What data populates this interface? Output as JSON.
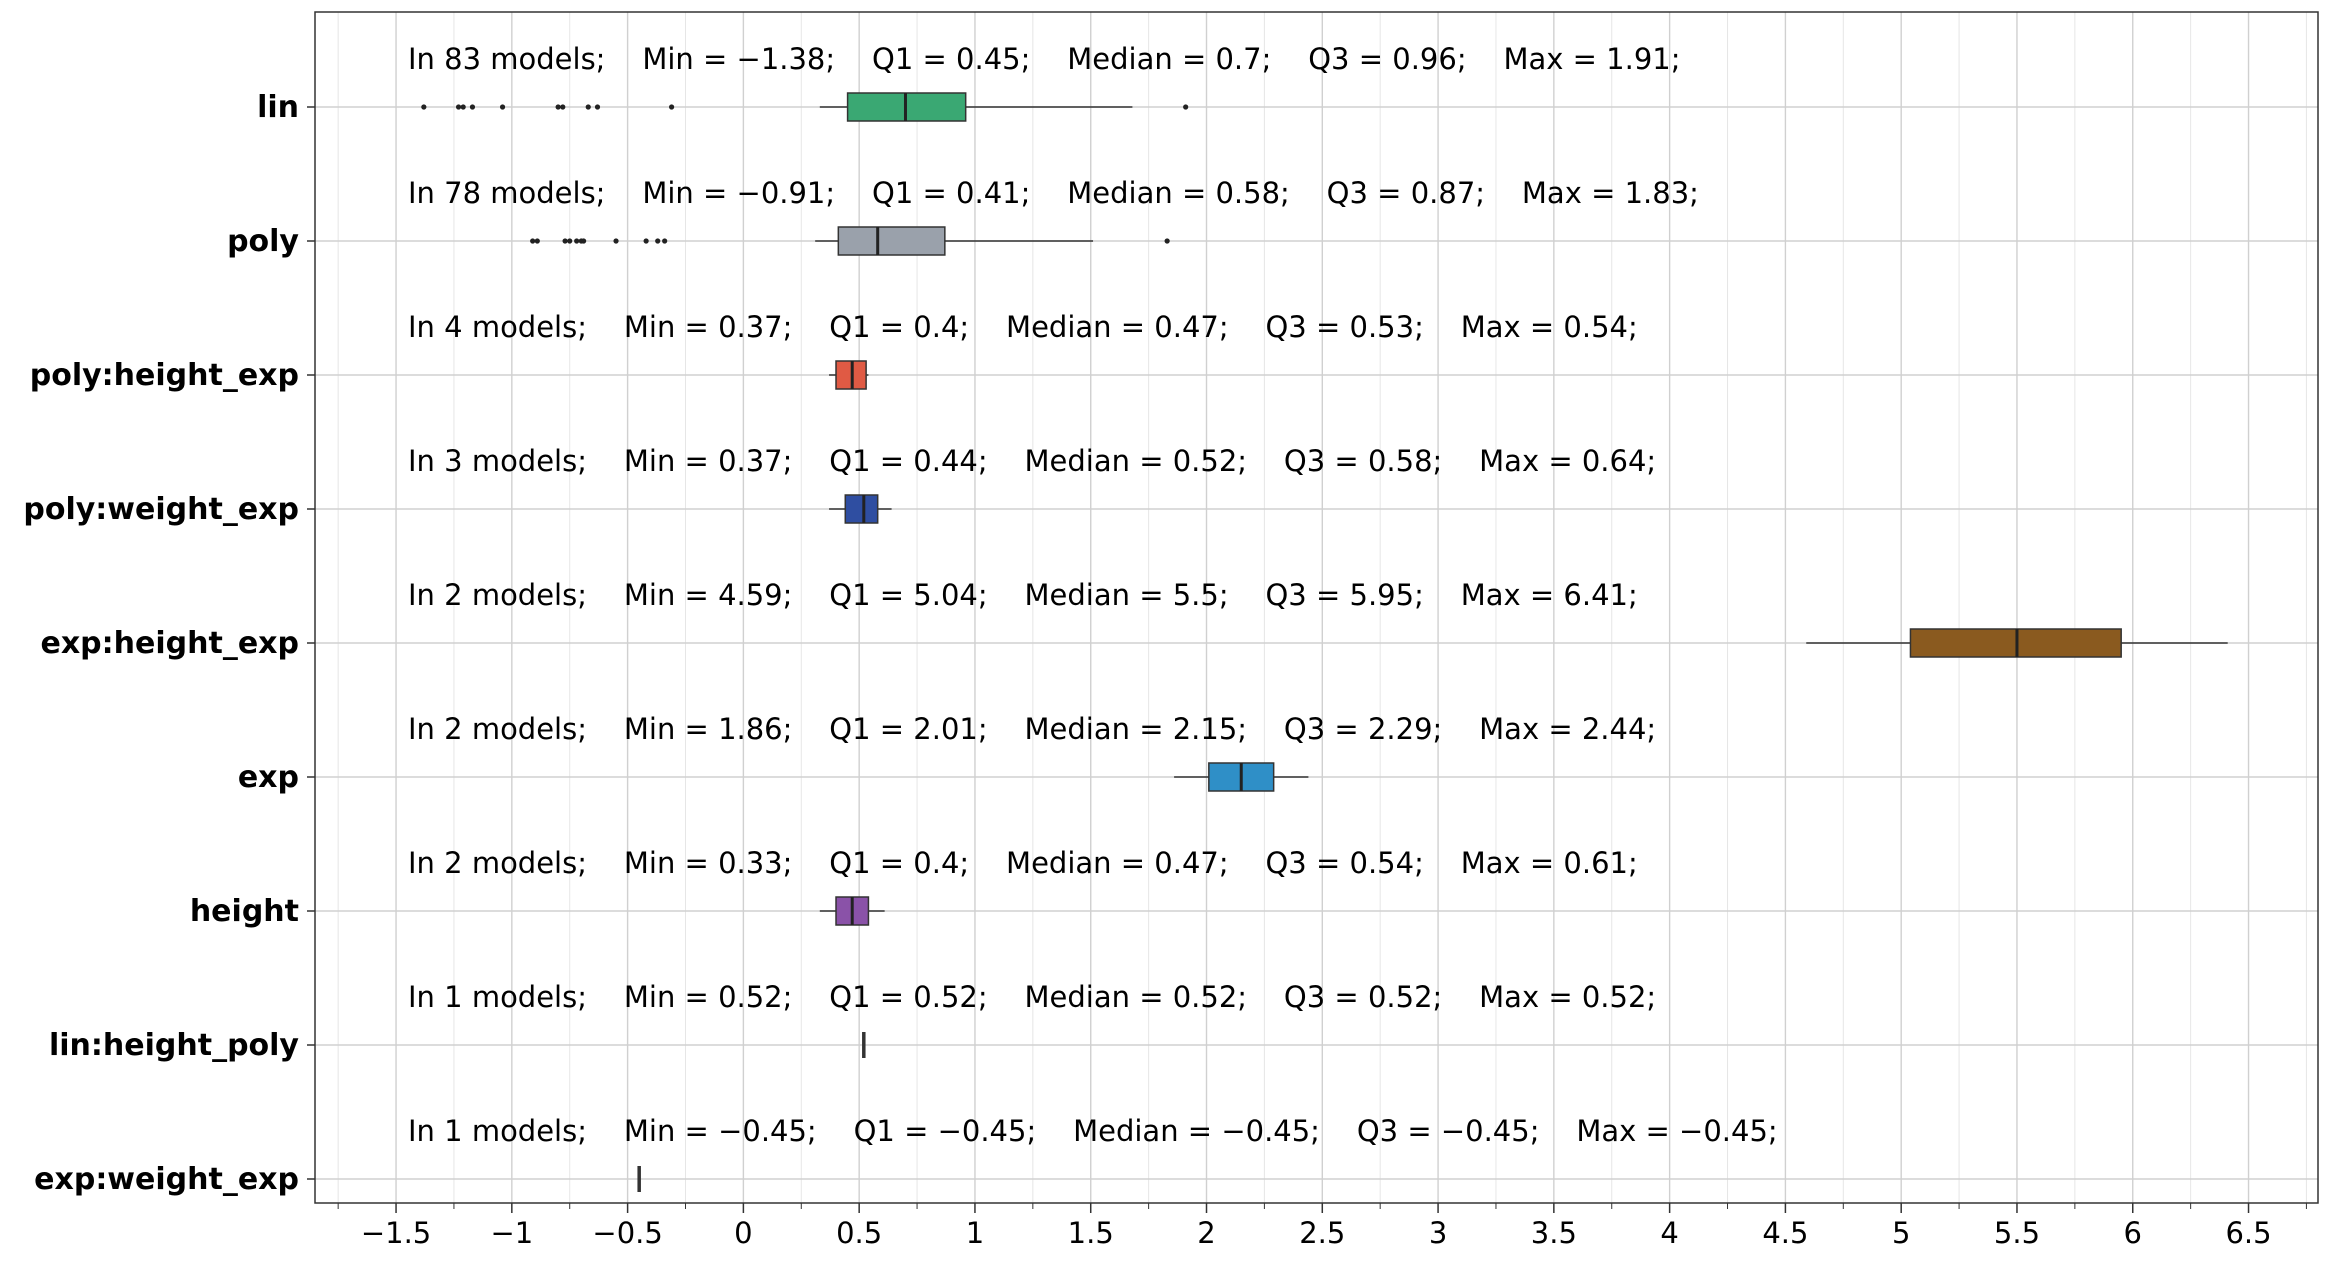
{
  "chart_data": {
    "type": "box",
    "orientation": "horizontal",
    "xlim": [
      -1.85,
      6.8
    ],
    "x_ticks": [
      "−1.5",
      "−1",
      "−0.5",
      "0",
      "0.5",
      "1",
      "1.5",
      "2",
      "2.5",
      "3",
      "3.5",
      "4",
      "4.5",
      "5",
      "5.5",
      "6",
      "6.5"
    ],
    "grid": true,
    "categories": [
      {
        "label": "lin",
        "annotation": "In 83 models;    Min = −1.38;    Q1 = 0.45;    Median = 0.7;    Q3 = 0.96;    Max = 1.91;",
        "color": "#3aa873",
        "min": -1.38,
        "whisker_low": 0.33,
        "q1": 0.45,
        "median": 0.7,
        "q3": 0.96,
        "whisker_high": 1.68,
        "max": 1.91,
        "outliers": [
          -1.38,
          -1.23,
          -1.21,
          -1.17,
          -1.04,
          -0.8,
          -0.78,
          -0.67,
          -0.63,
          -0.31,
          1.91
        ]
      },
      {
        "label": "poly",
        "annotation": "In 78 models;    Min = −0.91;    Q1 = 0.41;    Median = 0.58;    Q3 = 0.87;    Max = 1.83;",
        "color": "#9aa1ab",
        "min": -0.91,
        "whisker_low": 0.31,
        "q1": 0.41,
        "median": 0.58,
        "q3": 0.87,
        "whisker_high": 1.51,
        "max": 1.83,
        "outliers": [
          -0.91,
          -0.89,
          -0.77,
          -0.75,
          -0.72,
          -0.7,
          -0.69,
          -0.55,
          -0.42,
          -0.37,
          -0.34,
          1.83
        ]
      },
      {
        "label": "poly:height_exp",
        "annotation": "In 4 models;    Min = 0.37;    Q1 = 0.4;    Median = 0.47;    Q3 = 0.53;    Max = 0.54;",
        "color": "#e05a44",
        "min": 0.37,
        "whisker_low": 0.37,
        "q1": 0.4,
        "median": 0.47,
        "q3": 0.53,
        "whisker_high": 0.54,
        "max": 0.54,
        "outliers": []
      },
      {
        "label": "poly:weight_exp",
        "annotation": "In 3 models;    Min = 0.37;    Q1 = 0.44;    Median = 0.52;    Q3 = 0.58;    Max = 0.64;",
        "color": "#2f4ea1",
        "min": 0.37,
        "whisker_low": 0.37,
        "q1": 0.44,
        "median": 0.52,
        "q3": 0.58,
        "whisker_high": 0.64,
        "max": 0.64,
        "outliers": []
      },
      {
        "label": "exp:height_exp",
        "annotation": "In 2 models;    Min = 4.59;    Q1 = 5.04;    Median = 5.5;    Q3 = 5.95;    Max = 6.41;",
        "color": "#8a5a1f",
        "min": 4.59,
        "whisker_low": 4.59,
        "q1": 5.04,
        "median": 5.5,
        "q3": 5.95,
        "whisker_high": 6.41,
        "max": 6.41,
        "outliers": []
      },
      {
        "label": "exp",
        "annotation": "In 2 models;    Min = 1.86;    Q1 = 2.01;    Median = 2.15;    Q3 = 2.29;    Max = 2.44;",
        "color": "#2f8fc7",
        "min": 1.86,
        "whisker_low": 1.86,
        "q1": 2.01,
        "median": 2.15,
        "q3": 2.29,
        "whisker_high": 2.44,
        "max": 2.44,
        "outliers": []
      },
      {
        "label": "height",
        "annotation": "In 2 models;    Min = 0.33;    Q1 = 0.4;    Median = 0.47;    Q3 = 0.54;    Max = 0.61;",
        "color": "#8a52a8",
        "min": 0.33,
        "whisker_low": 0.33,
        "q1": 0.4,
        "median": 0.47,
        "q3": 0.54,
        "whisker_high": 0.61,
        "max": 0.61,
        "outliers": []
      },
      {
        "label": "lin:height_poly",
        "annotation": "In 1 models;    Min = 0.52;    Q1 = 0.52;    Median = 0.52;    Q3 = 0.52;    Max = 0.52;",
        "color": "#333333",
        "min": 0.52,
        "whisker_low": 0.52,
        "q1": 0.52,
        "median": 0.52,
        "q3": 0.52,
        "whisker_high": 0.52,
        "max": 0.52,
        "outliers": []
      },
      {
        "label": "exp:weight_exp",
        "annotation": "In 1 models;    Min = −0.45;    Q1 = −0.45;    Median = −0.45;    Q3 = −0.45;    Max = −0.45;",
        "color": "#333333",
        "min": -0.45,
        "whisker_low": -0.45,
        "q1": -0.45,
        "median": -0.45,
        "q3": -0.45,
        "whisker_high": -0.45,
        "max": -0.45,
        "outliers": []
      }
    ]
  }
}
